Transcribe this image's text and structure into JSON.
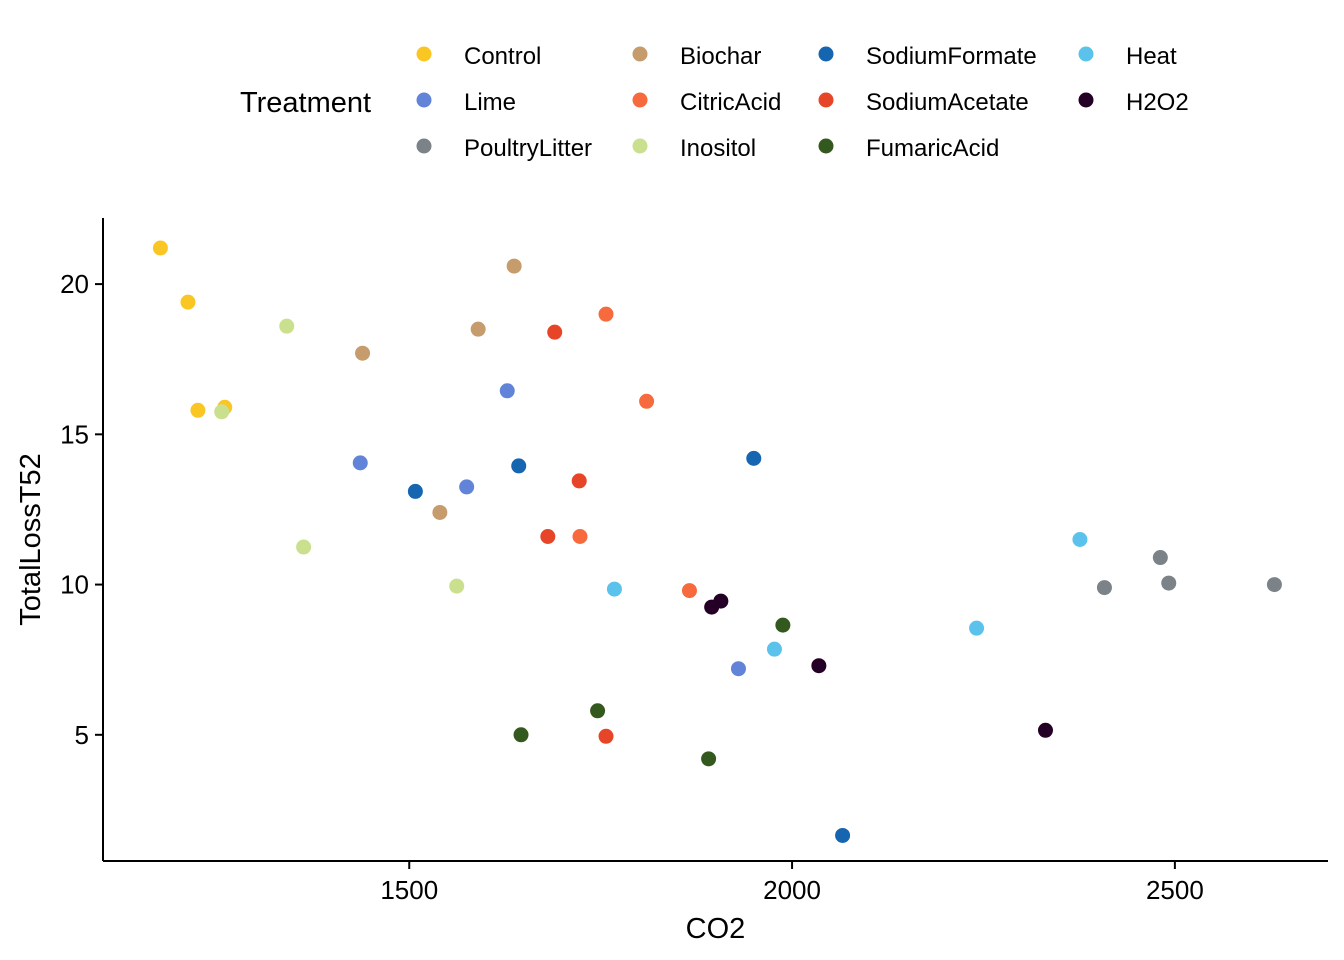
{
  "chart_data": {
    "type": "scatter",
    "xlabel": "CO2",
    "ylabel": "TotalLossT52",
    "xlim": [
      1100,
      2700
    ],
    "ylim": [
      0.8,
      22.2
    ],
    "xticks": [
      1500,
      2000,
      2500
    ],
    "yticks": [
      5,
      10,
      15,
      20
    ],
    "grid": false,
    "legend": {
      "title": "Treatment",
      "placement": "top"
    },
    "series": [
      {
        "name": "Control",
        "color": "#F9C623",
        "points": [
          [
            1175,
            21.2
          ],
          [
            1211,
            19.4
          ],
          [
            1224,
            15.8
          ],
          [
            1259,
            15.9
          ]
        ]
      },
      {
        "name": "Lime",
        "color": "#6184D8",
        "points": [
          [
            1436,
            14.05
          ],
          [
            1575,
            13.25
          ],
          [
            1628,
            16.45
          ],
          [
            1930,
            7.2
          ]
        ]
      },
      {
        "name": "PoultryLitter",
        "color": "#7B8288",
        "points": [
          [
            2408,
            9.9
          ],
          [
            2481,
            10.9
          ],
          [
            2492,
            10.05
          ],
          [
            2630,
            10.0
          ]
        ]
      },
      {
        "name": "Biochar",
        "color": "#C69C6D",
        "points": [
          [
            1439,
            17.7
          ],
          [
            1540,
            12.4
          ],
          [
            1590,
            18.5
          ],
          [
            1637,
            20.6
          ]
        ]
      },
      {
        "name": "CitricAcid",
        "color": "#F76A3D",
        "points": [
          [
            1723,
            11.6
          ],
          [
            1757,
            19.0
          ],
          [
            1810,
            16.1
          ],
          [
            1866,
            9.8
          ]
        ]
      },
      {
        "name": "Inositol",
        "color": "#CAE08F",
        "points": [
          [
            1255,
            15.75
          ],
          [
            1340,
            18.6
          ],
          [
            1362,
            11.25
          ],
          [
            1562,
            9.95
          ]
        ]
      },
      {
        "name": "SodiumFormate",
        "color": "#1565B0",
        "points": [
          [
            1508,
            13.1
          ],
          [
            1643,
            13.95
          ],
          [
            1950,
            14.2
          ],
          [
            2066,
            1.65
          ]
        ]
      },
      {
        "name": "SodiumAcetate",
        "color": "#E64527",
        "points": [
          [
            1681,
            11.6
          ],
          [
            1690,
            18.4
          ],
          [
            1722,
            13.45
          ],
          [
            1757,
            4.95
          ]
        ]
      },
      {
        "name": "FumaricAcid",
        "color": "#33591E",
        "points": [
          [
            1646,
            5.0
          ],
          [
            1746,
            5.8
          ],
          [
            1891,
            4.2
          ],
          [
            1988,
            8.65
          ]
        ]
      },
      {
        "name": "Heat",
        "color": "#5BC3EB",
        "points": [
          [
            1768,
            9.85
          ],
          [
            1977,
            7.85
          ],
          [
            2241,
            8.55
          ],
          [
            2376,
            11.5
          ]
        ]
      },
      {
        "name": "H2O2",
        "color": "#250026",
        "points": [
          [
            1895,
            9.25
          ],
          [
            1907,
            9.45
          ],
          [
            2035,
            7.3
          ],
          [
            2331,
            5.15
          ]
        ]
      }
    ]
  }
}
